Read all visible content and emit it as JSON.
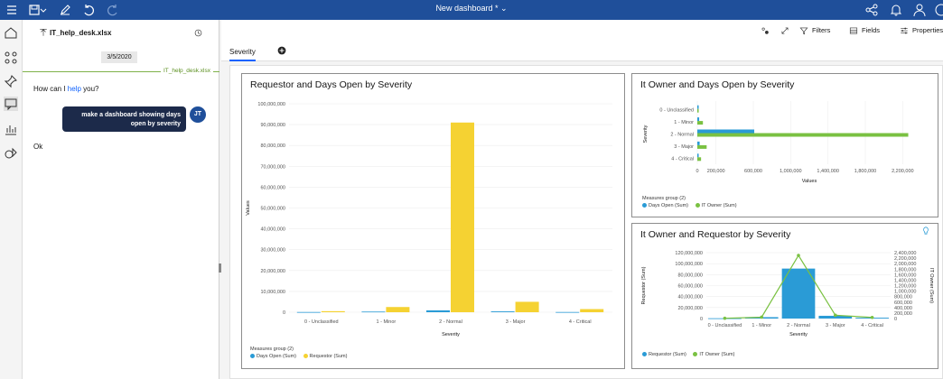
{
  "app": {
    "title": "New dashboard *",
    "colors": {
      "topbar": "#1f4f9a",
      "accent": "#0f62fe",
      "blue": "#2a9bd6",
      "yellow": "#f5d232",
      "green": "#7ac142"
    }
  },
  "chat": {
    "file_name": "IT_help_desk.xlsx",
    "date": "3/5/2020",
    "divider_label": "IT_help_desk.xlsx",
    "greeting_pre": "How can I ",
    "greeting_link": "help",
    "greeting_post": " you?",
    "user_message": "make a dashboard showing days open by severity",
    "user_initials": "JT",
    "reply": "Ok"
  },
  "toolbar": {
    "filters": "Filters",
    "fields": "Fields",
    "properties": "Properties"
  },
  "tabs": [
    {
      "label": "Severity"
    }
  ],
  "panels": {
    "requestor": {
      "title": "Requestor and Days Open by Severity",
      "legend_title": "Measures group (2)",
      "legend": [
        "Days Open (Sum)",
        "Requestor (Sum)"
      ]
    },
    "itowner_days": {
      "title": "It Owner and Days Open by Severity",
      "legend_title": "Measures group (2)",
      "legend": [
        "Days Open (Sum)",
        "IT Owner (Sum)"
      ]
    },
    "itowner_requestor": {
      "title": "It Owner and Requestor by Severity",
      "legend": [
        "Requestor (Sum)",
        "IT Owner (Sum)"
      ]
    }
  },
  "chart_data": [
    {
      "type": "bar",
      "title": "Requestor and Days Open by Severity",
      "categories": [
        "0 - Unclassified",
        "1 - Minor",
        "2 - Normal",
        "3 - Major",
        "4 - Critical"
      ],
      "series": [
        {
          "name": "Days Open (Sum)",
          "values": [
            100000,
            300000,
            900000,
            400000,
            100000
          ]
        },
        {
          "name": "Requestor (Sum)",
          "values": [
            500000,
            2500000,
            91000000,
            5000000,
            1500000
          ]
        }
      ],
      "xlabel": "Severity",
      "ylabel": "Values",
      "ylim": [
        0,
        100000000
      ],
      "yticks": [
        "0",
        "10,000,000",
        "20,000,000",
        "30,000,000",
        "40,000,000",
        "50,000,000",
        "60,000,000",
        "70,000,000",
        "80,000,000",
        "90,000,000",
        "100,000,000"
      ]
    },
    {
      "type": "bar",
      "orientation": "horizontal",
      "title": "It Owner and Days Open by Severity",
      "categories": [
        "0 - Unclassified",
        "1 - Minor",
        "2 - Normal",
        "3 - Major",
        "4 - Critical"
      ],
      "series": [
        {
          "name": "Days Open (Sum)",
          "values": [
            3000,
            20000,
            610000,
            25000,
            8000
          ]
        },
        {
          "name": "IT Owner (Sum)",
          "values": [
            8000,
            60000,
            2260000,
            100000,
            40000
          ]
        }
      ],
      "xlabel": "Values",
      "ylabel": "Severity",
      "xlim": [
        0,
        2400000
      ],
      "xticks": [
        "0",
        "200,000",
        "600,000",
        "1,000,000",
        "1,400,000",
        "1,800,000",
        "2,200,000"
      ]
    },
    {
      "type": "bar",
      "combo": "bar+line",
      "title": "It Owner and Requestor by Severity",
      "categories": [
        "0 - Unclassified",
        "1 - Minor",
        "2 - Normal",
        "3 - Major",
        "4 - Critical"
      ],
      "series": [
        {
          "name": "Requestor (Sum)",
          "type": "bar",
          "axis": "left",
          "values": [
            500000,
            2500000,
            91000000,
            5000000,
            1500000
          ]
        },
        {
          "name": "IT Owner (Sum)",
          "type": "line",
          "axis": "right",
          "values": [
            10000,
            50000,
            2300000,
            120000,
            40000
          ]
        }
      ],
      "xlabel": "Severity",
      "ylabel": "Requestor (Sum)",
      "y2label": "IT Owner (Sum)",
      "ylim": [
        0,
        120000000
      ],
      "y2lim": [
        0,
        2400000
      ],
      "yticks": [
        "0",
        "20,000,000",
        "40,000,000",
        "60,000,000",
        "80,000,000",
        "100,000,000",
        "120,000,000"
      ],
      "y2ticks": [
        "0",
        "200,000",
        "400,000",
        "600,000",
        "800,000",
        "1,000,000",
        "1,200,000",
        "1,400,000",
        "1,600,000",
        "1,800,000",
        "2,000,000",
        "2,200,000",
        "2,400,000"
      ]
    }
  ]
}
